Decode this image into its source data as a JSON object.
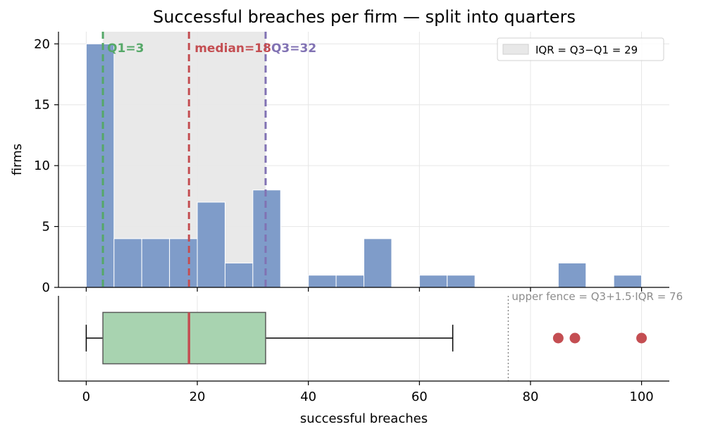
{
  "chart_data": {
    "title": "Successful breaches per firm — split into quarters",
    "xlabel": "successful breaches",
    "ylabel": "firms",
    "xlim": [
      -5,
      105
    ],
    "xticks": [
      0,
      20,
      40,
      60,
      80,
      100
    ],
    "histogram": {
      "type": "bar",
      "ylim": [
        0,
        21
      ],
      "yticks": [
        0,
        5,
        10,
        15,
        20
      ],
      "bin_width": 5,
      "bins": [
        {
          "start": 0,
          "count": 20
        },
        {
          "start": 5,
          "count": 4
        },
        {
          "start": 10,
          "count": 4
        },
        {
          "start": 15,
          "count": 4
        },
        {
          "start": 20,
          "count": 7
        },
        {
          "start": 25,
          "count": 2
        },
        {
          "start": 30,
          "count": 8
        },
        {
          "start": 40,
          "count": 1
        },
        {
          "start": 45,
          "count": 1
        },
        {
          "start": 50,
          "count": 4
        },
        {
          "start": 60,
          "count": 1
        },
        {
          "start": 65,
          "count": 1
        },
        {
          "start": 85,
          "count": 2
        },
        {
          "start": 95,
          "count": 1
        }
      ],
      "color": "#7f9cc9"
    },
    "quartiles": {
      "q1": 3,
      "median": 18.5,
      "q3": 32.3,
      "q1_label": "Q1=3",
      "median_label": "median=18",
      "q3_label": "Q3=32",
      "q1_color": "#55a868",
      "median_color": "#c44e52",
      "q3_color": "#8172b3"
    },
    "iqr_band": {
      "from": 3,
      "to": 32.3,
      "legend": "IQR = Q3−Q1 = 29",
      "color": "#e8e8e8",
      "legend_position": "upper right"
    },
    "boxplot": {
      "type": "box",
      "whisker_low": 0,
      "q1": 3,
      "median": 18.5,
      "q3": 32.3,
      "whisker_high": 66,
      "outliers": [
        85,
        88,
        100
      ],
      "box_color": "#a8d3b0",
      "outlier_color": "#c44e52",
      "upper_fence": 76,
      "fence_label": "upper fence = Q3+1.5·IQR = 76"
    },
    "grid": true
  }
}
